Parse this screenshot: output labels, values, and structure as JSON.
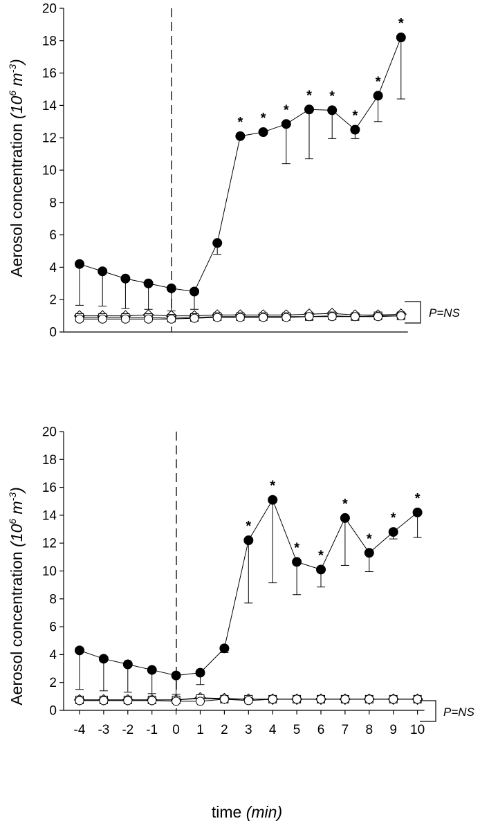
{
  "chart_data": [
    {
      "type": "line",
      "panel": "top",
      "ylabel_main": "Aerosol concentration ",
      "ylabel_unit_open": "(10",
      "ylabel_unit_exp1": "6",
      "ylabel_unit_mid": " m",
      "ylabel_unit_exp2": "-3",
      "ylabel_unit_close": ")",
      "ylim": [
        0,
        20
      ],
      "yticks": [
        "0",
        "2",
        "4",
        "6",
        "8",
        "10",
        "12",
        "14",
        "16",
        "18",
        "20"
      ],
      "x": [
        -4,
        -3,
        -2,
        -1,
        0,
        1,
        2,
        3,
        4,
        5,
        6,
        7,
        8,
        9,
        10
      ],
      "annotation": "P=NS",
      "series": [
        {
          "marker": "filled-circle",
          "values": [
            4.2,
            3.75,
            3.3,
            3.0,
            2.7,
            2.5,
            5.5,
            12.1,
            12.35,
            12.85,
            13.75,
            13.7,
            12.5,
            14.6,
            18.2
          ],
          "errors": [
            2.55,
            2.15,
            1.85,
            1.6,
            1.4,
            1.1,
            0.7,
            0.1,
            0.1,
            2.45,
            3.05,
            1.75,
            0.55,
            1.6,
            3.8
          ],
          "significant": [
            false,
            false,
            false,
            false,
            false,
            false,
            false,
            true,
            true,
            true,
            true,
            true,
            true,
            true,
            true
          ]
        },
        {
          "marker": "open-circle",
          "values": [
            0.8,
            0.8,
            0.8,
            0.8,
            0.8,
            0.85,
            0.9,
            0.9,
            0.9,
            0.9,
            0.95,
            0.95,
            0.95,
            0.95,
            1.0
          ]
        },
        {
          "marker": "open-square",
          "values": [
            0.9,
            0.9,
            0.9,
            0.9,
            0.85,
            0.9,
            0.95,
            0.95,
            0.95,
            0.95,
            0.95,
            1.0,
            0.95,
            1.0,
            1.0
          ]
        },
        {
          "marker": "open-diamond",
          "values": [
            1.0,
            1.0,
            1.0,
            1.05,
            1.0,
            1.0,
            1.05,
            1.05,
            1.05,
            1.05,
            1.1,
            1.15,
            1.05,
            1.05,
            1.1
          ]
        }
      ]
    },
    {
      "type": "line",
      "panel": "bottom",
      "ylabel_main": "Aerosol concentration ",
      "ylabel_unit_open": "(10",
      "ylabel_unit_exp1": "6",
      "ylabel_unit_mid": " m",
      "ylabel_unit_exp2": "-3",
      "ylabel_unit_close": ")",
      "xlabel_main": "time ",
      "xlabel_unit": "(min)",
      "ylim": [
        0,
        20
      ],
      "yticks": [
        "0",
        "2",
        "4",
        "6",
        "8",
        "10",
        "12",
        "14",
        "16",
        "18",
        "20"
      ],
      "xticks": [
        "-4",
        "-3",
        "-2",
        "-1",
        "0",
        "1",
        "2",
        "3",
        "4",
        "5",
        "6",
        "7",
        "8",
        "9",
        "10"
      ],
      "x": [
        -4,
        -3,
        -2,
        -1,
        0,
        1,
        2,
        3,
        4,
        5,
        6,
        7,
        8,
        9,
        10
      ],
      "annotation": "P=NS",
      "series": [
        {
          "marker": "filled-circle",
          "values": [
            4.3,
            3.7,
            3.3,
            2.9,
            2.5,
            2.7,
            4.45,
            12.2,
            15.1,
            10.65,
            10.1,
            13.8,
            11.3,
            12.8,
            14.2
          ],
          "errors": [
            2.8,
            2.3,
            2.0,
            1.7,
            1.35,
            0.85,
            0.3,
            4.5,
            5.95,
            2.35,
            1.25,
            3.4,
            1.35,
            0.5,
            1.8
          ],
          "significant": [
            false,
            false,
            false,
            false,
            false,
            false,
            false,
            true,
            true,
            true,
            true,
            true,
            true,
            true,
            true
          ]
        },
        {
          "marker": "open-circle",
          "values": [
            0.7,
            0.7,
            0.7,
            0.7,
            0.65,
            0.65,
            0.8,
            0.7,
            0.8,
            0.8,
            0.8,
            0.8,
            0.8,
            0.8,
            0.8
          ]
        },
        {
          "marker": "open-square",
          "values": [
            0.75,
            0.75,
            0.75,
            0.75,
            0.75,
            0.85,
            0.8,
            0.8,
            0.8,
            0.8,
            0.8,
            0.8,
            0.8,
            0.8,
            0.8
          ]
        },
        {
          "marker": "open-diamond",
          "values": [
            0.75,
            0.75,
            0.75,
            0.75,
            0.75,
            0.9,
            0.85,
            0.8,
            0.8,
            0.8,
            0.8,
            0.8,
            0.8,
            0.8,
            0.8
          ]
        }
      ]
    }
  ]
}
